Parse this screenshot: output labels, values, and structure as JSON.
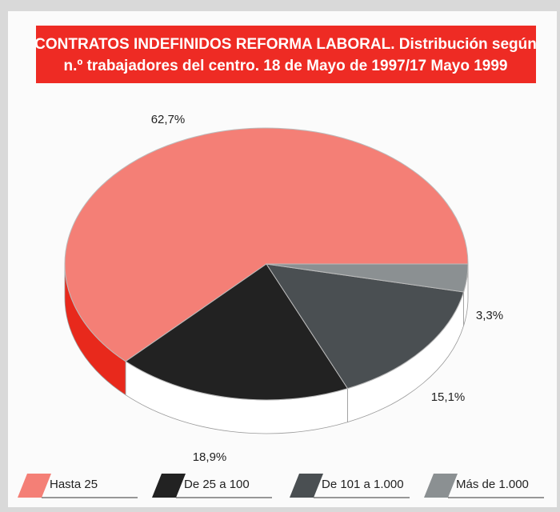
{
  "chart_data": {
    "type": "pie",
    "title": [
      "CONTRATOS INDEFINIDOS REFORMA LABORAL. Distribución según",
      "n.º trabajadores del centro. 18 de Mayo de 1997/17 Mayo 1999"
    ],
    "categories": [
      "Hasta 25",
      "De 25 a 100",
      "De 101 a 1.000",
      "Más de 1.000"
    ],
    "values": [
      62.7,
      18.9,
      15.1,
      3.3
    ],
    "value_labels": [
      "62,7%",
      "18,9%",
      "15,1%",
      "3,3%"
    ],
    "colors": [
      "#f47f76",
      "#222222",
      "#4a4f52",
      "#8b9092"
    ]
  }
}
